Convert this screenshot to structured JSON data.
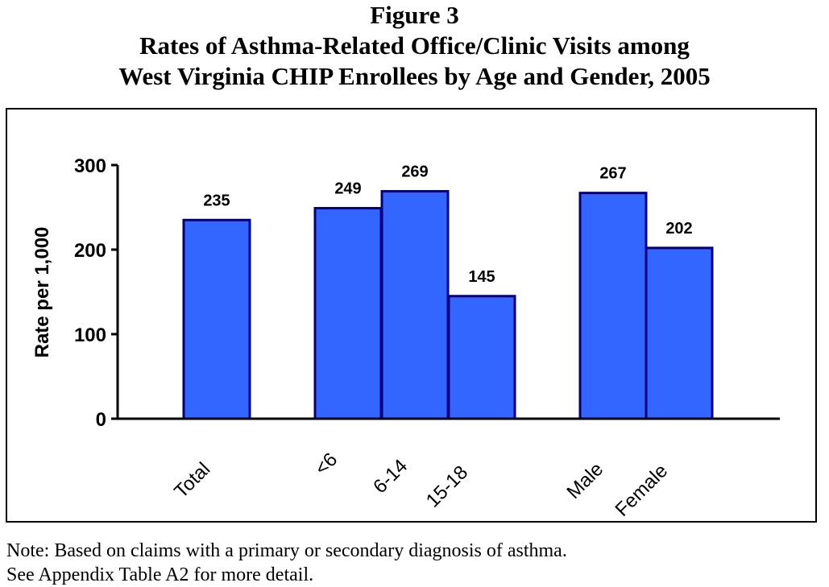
{
  "figure": {
    "label": "Figure 3",
    "title_line1": "Rates of Asthma-Related Office/Clinic Visits among",
    "title_line2": "West Virginia CHIP Enrollees by Age and Gender, 2005"
  },
  "chart_data": {
    "type": "bar",
    "categories": [
      "Total",
      "<6",
      "6-14",
      "15-18",
      "Male",
      "Female"
    ],
    "values": [
      235,
      249,
      269,
      145,
      267,
      202
    ],
    "data_labels": [
      "235",
      "249",
      "269",
      "145",
      "267",
      "202"
    ],
    "ylabel": "Rate per 1,000",
    "xlabel": "",
    "ylim": [
      0,
      300
    ],
    "yticks": [
      0,
      100,
      200,
      300
    ],
    "grid": false,
    "legend": "none",
    "bar_color": "#3366FF",
    "bar_edge_color": "#000080"
  },
  "notes": {
    "line1": "Note: Based on claims with a primary or secondary diagnosis of asthma.",
    "line2": "See Appendix Table A2 for more detail."
  }
}
